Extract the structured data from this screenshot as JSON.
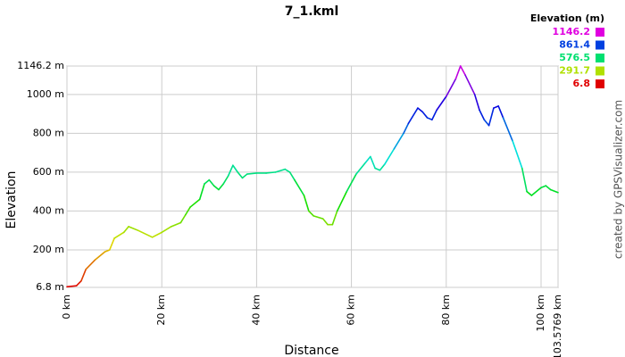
{
  "chart_data": {
    "type": "line",
    "title": "7_1.kml",
    "x_label": "Distance",
    "y_label": "Elevation",
    "credit": "created by GPSVisualizer.com",
    "legend_title": "Elevation (m)",
    "color_scale": [
      {
        "value": 1146.2,
        "color": "#e000e0"
      },
      {
        "value": 861.4,
        "color": "#0040e0"
      },
      {
        "value": 576.5,
        "color": "#00e070"
      },
      {
        "value": 291.7,
        "color": "#b0e000"
      },
      {
        "value": 6.8,
        "color": "#e00000"
      }
    ],
    "grid": true,
    "xlim": [
      0,
      103.5769
    ],
    "xticks": [
      {
        "value": 0,
        "label": "0 km"
      },
      {
        "value": 20,
        "label": "20 km"
      },
      {
        "value": 40,
        "label": "40 km"
      },
      {
        "value": 60,
        "label": "60 km"
      },
      {
        "value": 80,
        "label": "80 km"
      },
      {
        "value": 100,
        "label": "100 km"
      },
      {
        "value": 103.5769,
        "label": "103.5769 km"
      }
    ],
    "ylim": [
      6.8,
      1146.2
    ],
    "yticks": [
      {
        "value": 6.8,
        "label": "6.8 m"
      },
      {
        "value": 200,
        "label": "200 m"
      },
      {
        "value": 400,
        "label": "400 m"
      },
      {
        "value": 600,
        "label": "600 m"
      },
      {
        "value": 800,
        "label": "800 m"
      },
      {
        "value": 1000,
        "label": "1000 m"
      },
      {
        "value": 1146.2,
        "label": "1146.2 m"
      }
    ],
    "x": [
      0,
      2,
      3,
      4,
      6,
      8,
      9,
      10,
      12,
      13,
      15,
      18,
      20,
      22,
      24,
      25,
      26,
      28,
      29,
      30,
      31,
      32,
      33,
      34,
      35,
      36,
      37,
      38,
      40,
      42,
      44,
      46,
      47,
      48,
      50,
      51,
      52,
      54,
      55,
      56,
      57,
      59,
      61,
      63,
      64,
      65,
      66,
      67,
      69,
      71,
      72,
      74,
      75,
      76,
      77,
      78,
      80,
      82,
      83,
      84,
      86,
      87,
      88,
      89,
      90,
      91,
      92,
      94,
      96,
      97,
      98,
      100,
      101,
      102,
      103.5769
    ],
    "values": [
      10,
      15,
      40,
      100,
      150,
      190,
      200,
      260,
      290,
      320,
      300,
      265,
      290,
      320,
      340,
      380,
      420,
      460,
      540,
      560,
      530,
      510,
      540,
      580,
      635,
      600,
      570,
      590,
      595,
      595,
      600,
      615,
      600,
      560,
      480,
      400,
      375,
      360,
      330,
      330,
      400,
      500,
      590,
      650,
      680,
      620,
      610,
      640,
      720,
      800,
      850,
      930,
      910,
      880,
      870,
      920,
      990,
      1080,
      1146.2,
      1100,
      1000,
      920,
      870,
      840,
      930,
      940,
      880,
      760,
      620,
      500,
      480,
      520,
      530,
      510,
      495
    ]
  }
}
